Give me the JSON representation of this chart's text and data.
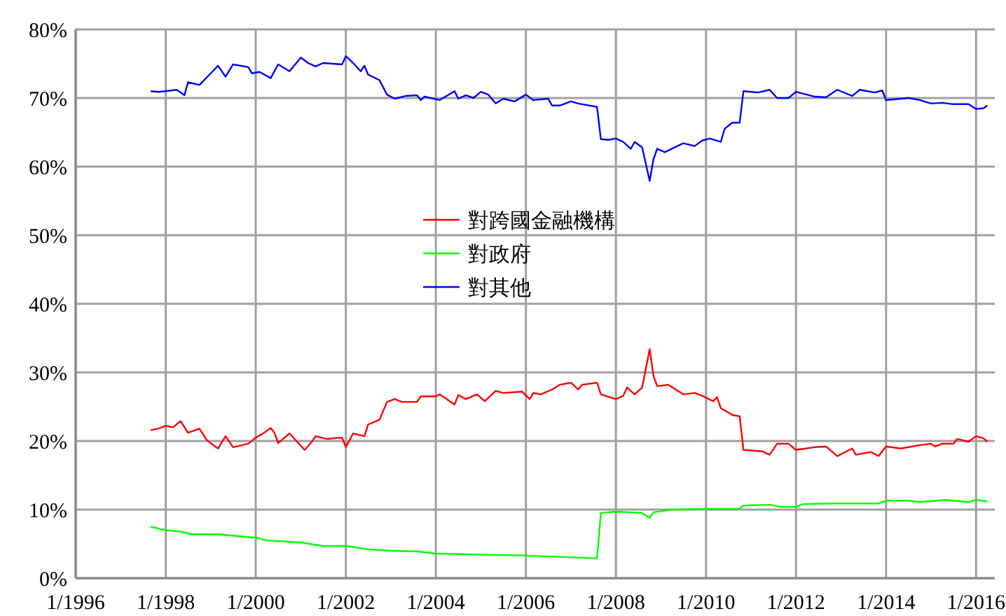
{
  "chart_data": {
    "type": "line",
    "xlim": [
      "1996-01",
      "2016-06"
    ],
    "ylim": [
      0,
      80
    ],
    "xticks": [
      {
        "value": "1996-01",
        "label": "1/1996"
      },
      {
        "value": "1998-01",
        "label": "1/1998"
      },
      {
        "value": "2000-01",
        "label": "1/2000"
      },
      {
        "value": "2002-01",
        "label": "1/2002"
      },
      {
        "value": "2004-01",
        "label": "1/2004"
      },
      {
        "value": "2006-01",
        "label": "1/2006"
      },
      {
        "value": "2008-01",
        "label": "1/2008"
      },
      {
        "value": "2010-01",
        "label": "1/2010"
      },
      {
        "value": "2012-01",
        "label": "1/2012"
      },
      {
        "value": "2014-01",
        "label": "1/2014"
      },
      {
        "value": "2016-01",
        "label": "1/2016"
      }
    ],
    "yticks": [
      {
        "value": 0,
        "label": "0%"
      },
      {
        "value": 10,
        "label": "10%"
      },
      {
        "value": 20,
        "label": "20%"
      },
      {
        "value": 30,
        "label": "30%"
      },
      {
        "value": 40,
        "label": "40%"
      },
      {
        "value": 50,
        "label": "50%"
      },
      {
        "value": 60,
        "label": "60%"
      },
      {
        "value": 70,
        "label": "70%"
      },
      {
        "value": 80,
        "label": "80%"
      }
    ],
    "grid": true,
    "legend": "center",
    "marker": "none",
    "line_style": "solid",
    "series": [
      {
        "name": "對跨國金融機構",
        "color": "#ff0000",
        "x": [
          "1997-09",
          "1997-11",
          "1998-01",
          "1998-03",
          "1998-05",
          "1998-07",
          "1998-10",
          "1998-12",
          "1999-03",
          "1999-05",
          "1999-07",
          "1999-11",
          "2000-01",
          "2000-03",
          "2000-05",
          "2000-06",
          "2000-07",
          "2000-10",
          "2001-02",
          "2001-04",
          "2001-05",
          "2001-08",
          "2001-12",
          "2002-01",
          "2002-03",
          "2002-06",
          "2002-07",
          "2002-10",
          "2002-12",
          "2003-02",
          "2003-04",
          "2003-08",
          "2003-09",
          "2004-01",
          "2004-02",
          "2004-06",
          "2004-07",
          "2004-09",
          "2004-12",
          "2005-02",
          "2005-05",
          "2005-07",
          "2005-12",
          "2006-02",
          "2006-03",
          "2006-05",
          "2006-08",
          "2006-10",
          "2007-01",
          "2007-03",
          "2007-04",
          "2007-08",
          "2007-09",
          "2008-01",
          "2008-03",
          "2008-04",
          "2008-06",
          "2008-08",
          "2008-10",
          "2008-11",
          "2008-12",
          "2009-03",
          "2009-07",
          "2009-10",
          "2009-12",
          "2010-03",
          "2010-04",
          "2010-05",
          "2010-08",
          "2010-10",
          "2010-11",
          "2011-04",
          "2011-06",
          "2011-08",
          "2011-11",
          "2012-01",
          "2012-06",
          "2012-09",
          "2012-12",
          "2013-04",
          "2013-05",
          "2013-09",
          "2013-11",
          "2014-01",
          "2014-05",
          "2014-10",
          "2015-01",
          "2015-02",
          "2015-04",
          "2015-07",
          "2015-08",
          "2015-11",
          "2016-01",
          "2016-03",
          "2016-04"
        ],
        "values": [
          21.6,
          21.8,
          22.2,
          22.0,
          22.9,
          21.2,
          21.8,
          20.1,
          18.9,
          20.7,
          19.1,
          19.6,
          20.5,
          21.1,
          21.9,
          21.2,
          19.7,
          21.1,
          18.7,
          19.9,
          20.7,
          20.3,
          20.5,
          19.1,
          21.1,
          20.7,
          22.4,
          23.1,
          25.7,
          26.1,
          25.7,
          25.7,
          26.5,
          26.5,
          26.8,
          25.3,
          26.7,
          26.1,
          26.8,
          25.8,
          27.3,
          27.0,
          27.2,
          26.1,
          27.0,
          26.8,
          27.5,
          28.2,
          28.5,
          27.5,
          28.2,
          28.5,
          26.8,
          26.1,
          26.6,
          27.8,
          26.8,
          27.8,
          33.4,
          29.5,
          28.0,
          28.2,
          26.8,
          27.0,
          26.6,
          25.8,
          26.4,
          24.8,
          23.8,
          23.6,
          18.7,
          18.5,
          18.0,
          19.6,
          19.6,
          18.7,
          19.1,
          19.2,
          17.8,
          18.9,
          18.0,
          18.4,
          17.8,
          19.2,
          18.9,
          19.4,
          19.6,
          19.2,
          19.6,
          19.6,
          20.3,
          19.9,
          20.7,
          20.4,
          19.9
        ]
      },
      {
        "name": "對政府",
        "color": "#00ff00",
        "x": [
          "1997-09",
          "1998-01",
          "1998-05",
          "1998-08",
          "1999-03",
          "1999-09",
          "2000-01",
          "2000-04",
          "2001-01",
          "2001-07",
          "2002-01",
          "2002-07",
          "2003-01",
          "2003-08",
          "2004-01",
          "2004-08",
          "2006-01",
          "2006-10",
          "2007-08",
          "2007-09",
          "2008-01",
          "2008-05",
          "2008-08",
          "2008-10",
          "2008-11",
          "2009-04",
          "2009-12",
          "2010-10",
          "2010-11",
          "2011-06",
          "2011-09",
          "2012-01",
          "2012-03",
          "2012-11",
          "2013-11",
          "2014-01",
          "2014-07",
          "2014-10",
          "2015-05",
          "2015-11",
          "2016-01",
          "2016-04"
        ],
        "values": [
          7.5,
          7.0,
          6.8,
          6.4,
          6.4,
          6.1,
          5.9,
          5.5,
          5.2,
          4.7,
          4.7,
          4.2,
          4.0,
          3.9,
          3.6,
          3.5,
          3.3,
          3.1,
          2.9,
          9.5,
          9.7,
          9.6,
          9.5,
          8.8,
          9.6,
          10.0,
          10.1,
          10.1,
          10.6,
          10.7,
          10.4,
          10.4,
          10.8,
          10.9,
          10.9,
          11.3,
          11.3,
          11.1,
          11.4,
          11.1,
          11.4,
          11.2
        ]
      },
      {
        "name": "對其他",
        "color": "#0000ff",
        "x": [
          "1997-09",
          "1997-11",
          "1998-01",
          "1998-04",
          "1998-06",
          "1998-07",
          "1998-10",
          "1999-01",
          "1999-03",
          "1999-05",
          "1999-07",
          "1999-11",
          "1999-12",
          "2000-02",
          "2000-05",
          "2000-07",
          "2000-10",
          "2001-01",
          "2001-03",
          "2001-05",
          "2001-07",
          "2001-12",
          "2002-01",
          "2002-03",
          "2002-05",
          "2002-06",
          "2002-07",
          "2002-10",
          "2002-12",
          "2003-02",
          "2003-05",
          "2003-08",
          "2003-09",
          "2003-10",
          "2004-02",
          "2004-06",
          "2004-07",
          "2004-09",
          "2004-11",
          "2005-01",
          "2005-03",
          "2005-05",
          "2005-07",
          "2005-10",
          "2006-01",
          "2006-03",
          "2006-07",
          "2006-08",
          "2006-10",
          "2007-01",
          "2007-03",
          "2007-04",
          "2007-08",
          "2007-09",
          "2007-11",
          "2008-01",
          "2008-03",
          "2008-05",
          "2008-06",
          "2008-08",
          "2008-10",
          "2008-11",
          "2008-12",
          "2009-02",
          "2009-07",
          "2009-10",
          "2009-12",
          "2010-02",
          "2010-05",
          "2010-06",
          "2010-08",
          "2010-10",
          "2010-11",
          "2011-03",
          "2011-06",
          "2011-08",
          "2011-11",
          "2012-01",
          "2012-06",
          "2012-09",
          "2012-12",
          "2013-04",
          "2013-06",
          "2013-10",
          "2013-12",
          "2014-01",
          "2014-07",
          "2014-10",
          "2015-01",
          "2015-04",
          "2015-07",
          "2015-11",
          "2016-01",
          "2016-03",
          "2016-04"
        ],
        "values": [
          71.0,
          70.9,
          71.0,
          71.2,
          70.4,
          72.3,
          71.9,
          73.6,
          74.7,
          73.1,
          74.9,
          74.5,
          73.6,
          73.8,
          72.9,
          74.9,
          73.9,
          75.9,
          75.1,
          74.6,
          75.1,
          74.9,
          76.1,
          75.1,
          73.9,
          74.7,
          73.4,
          72.6,
          70.5,
          69.9,
          70.3,
          70.4,
          69.7,
          70.2,
          69.7,
          71.0,
          69.9,
          70.4,
          70.0,
          70.9,
          70.5,
          69.2,
          69.9,
          69.5,
          70.5,
          69.7,
          69.9,
          68.9,
          68.9,
          69.5,
          69.2,
          69.1,
          68.7,
          64.0,
          63.9,
          64.1,
          63.6,
          62.6,
          63.6,
          62.8,
          57.9,
          61.1,
          62.6,
          62.1,
          63.4,
          63.0,
          63.8,
          64.1,
          63.6,
          65.5,
          66.4,
          66.4,
          71.0,
          70.8,
          71.2,
          70.0,
          70.0,
          70.9,
          70.2,
          70.1,
          71.2,
          70.3,
          71.2,
          70.8,
          71.1,
          69.7,
          70.0,
          69.7,
          69.2,
          69.3,
          69.1,
          69.1,
          68.4,
          68.5,
          68.9
        ]
      }
    ]
  }
}
